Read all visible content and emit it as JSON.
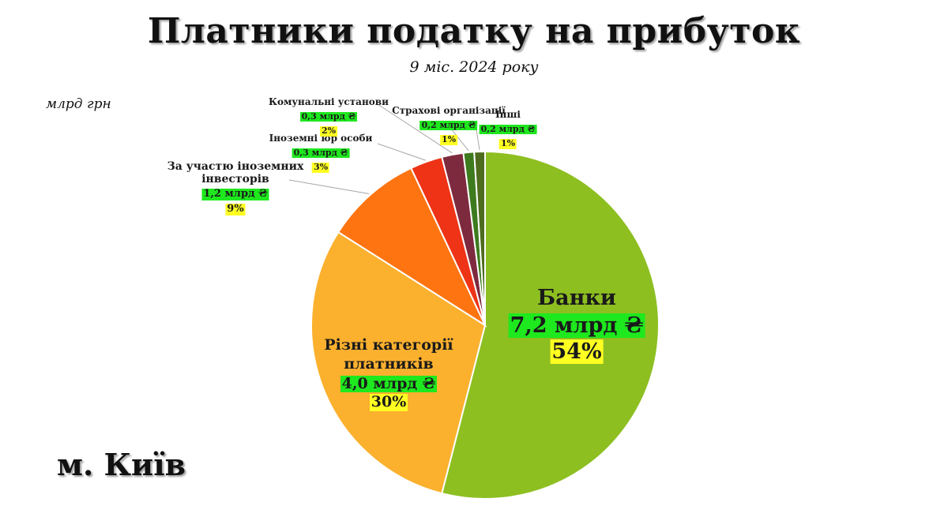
{
  "title": "Платники податку на прибуток",
  "subtitle": "9 міс. 2024 року",
  "unit": "млрд грн",
  "city": "м. Київ",
  "chart_data": {
    "type": "pie",
    "title": "Платники податку на прибуток",
    "subtitle": "9 міс. 2024 року",
    "unit": "млрд грн",
    "start": "12 o'clock",
    "direction": "clockwise",
    "slices": [
      {
        "name": "Банки",
        "value": 7.2,
        "value_label": "7,2 млрд ₴",
        "percent": 54,
        "percent_label": "54%",
        "color": "#8dbf21"
      },
      {
        "name": "Різні категорії платників",
        "value": 4.0,
        "value_label": "4,0 млрд ₴",
        "percent": 30,
        "percent_label": "30%",
        "color": "#fbb02e"
      },
      {
        "name": "За участю іноземних інвесторів",
        "value": 1.2,
        "value_label": "1,2 млрд ₴",
        "percent": 9,
        "percent_label": "9%",
        "color": "#fd7410"
      },
      {
        "name": "Іноземні юр особи",
        "value": 0.3,
        "value_label": "0,3 млрд ₴",
        "percent": 3,
        "percent_label": "3%",
        "color": "#ee3316"
      },
      {
        "name": "Комунальні установи",
        "value": 0.3,
        "value_label": "0,3 млрд ₴",
        "percent": 2,
        "percent_label": "2%",
        "color": "#7e2a3e"
      },
      {
        "name": "Страхові організації",
        "value": 0.2,
        "value_label": "0,2 млрд ₴",
        "percent": 1,
        "percent_label": "1%",
        "color": "#3d7b1e"
      },
      {
        "name": "Інші",
        "value": 0.2,
        "value_label": "0,2 млрд ₴",
        "percent": 1,
        "percent_label": "1%",
        "color": "#4e6c1e"
      }
    ]
  }
}
